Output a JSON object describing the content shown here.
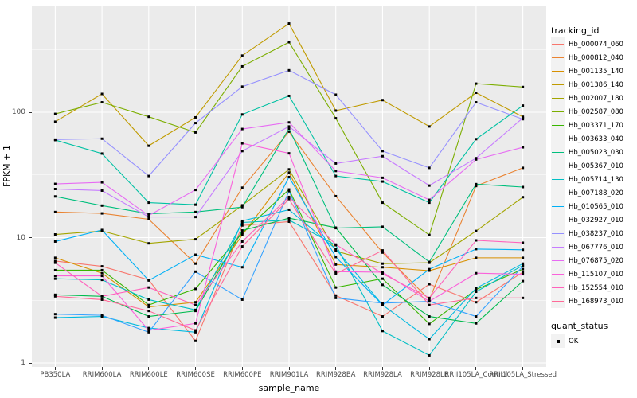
{
  "figure": {
    "y_axis": {
      "title": "FPKM + 1",
      "tick_labels": [
        "1",
        "10",
        "100"
      ],
      "tick_values": [
        1,
        10,
        100
      ],
      "minor_grid_values": [
        3.1623,
        31.623,
        316.23
      ]
    },
    "x_axis": {
      "title": "sample_name"
    },
    "legend": {
      "tracking_title": "tracking_id",
      "quant_title": "quant_status",
      "quant_items": [
        {
          "label": "OK",
          "marker": "black-square"
        }
      ]
    },
    "colors": {
      "panel_bg": "#EBEBEB",
      "grid": "#FFFFFF",
      "axis_text": "#4D4D4D",
      "axis_title": "#000000",
      "legend_key_bg": "#F2F2F2",
      "point": "#000000"
    }
  },
  "chart_data": {
    "type": "line",
    "xlabel": "sample_name",
    "ylabel": "FPKM + 1",
    "yscale": "log10",
    "ylim": [
      0.93,
      676
    ],
    "grid": "on",
    "legend_position": "right",
    "point_shape": "square",
    "quant_status_of_all_points": "OK",
    "x": [
      "PB350LA",
      "RRIM600LA",
      "RRIM600LE",
      "RRIM600SE",
      "RRIM600PE",
      "RRIM901LA",
      "RRIM928BA",
      "RRIM928LA",
      "RRIM928LE",
      "RRII105LA_Control",
      "RRII105LA_Stressed"
    ],
    "series": [
      {
        "name": "Hb_000074_060",
        "color": "#F8766D",
        "values": [
          6.5,
          5.9,
          4.6,
          1.5,
          12.5,
          13.4,
          3.45,
          2.35,
          4.25,
          3.05,
          5.3
        ]
      },
      {
        "name": "Hb_000812_040",
        "color": "#EA8331",
        "values": [
          16,
          15.6,
          14,
          6.2,
          25,
          70,
          21.4,
          7.6,
          3.2,
          25.8,
          36
        ]
      },
      {
        "name": "Hb_001135_140",
        "color": "#D89000",
        "values": [
          6.9,
          5.2,
          2.8,
          3.05,
          10.5,
          33,
          6.1,
          5.8,
          5.45,
          6.9,
          6.9
        ]
      },
      {
        "name": "Hb_001386_140",
        "color": "#C09B00",
        "values": [
          84,
          140,
          54,
          91,
          283,
          510,
          103,
          125,
          77,
          143,
          92
        ]
      },
      {
        "name": "Hb_002007_180",
        "color": "#A3A500",
        "values": [
          10.6,
          11.3,
          9.0,
          9.7,
          18.1,
          35,
          7.8,
          6.2,
          6.3,
          11.3,
          21
        ]
      },
      {
        "name": "Hb_002587_080",
        "color": "#7CAE00",
        "values": [
          97,
          120,
          92,
          69,
          232,
          362,
          89.5,
          19,
          10.5,
          169,
          159
        ]
      },
      {
        "name": "Hb_003371_170",
        "color": "#39B600",
        "values": [
          5.5,
          5.5,
          2.9,
          3.9,
          10.9,
          24.2,
          4.0,
          4.7,
          2.05,
          3.85,
          5.6
        ]
      },
      {
        "name": "Hb_003633_040",
        "color": "#00BB4E",
        "values": [
          3.5,
          3.4,
          2.35,
          2.6,
          11.4,
          14.3,
          12,
          4.2,
          2.35,
          2.07,
          4.5
        ]
      },
      {
        "name": "Hb_005023_030",
        "color": "#00BF7D",
        "values": [
          21.3,
          18,
          15.5,
          16,
          17.5,
          74,
          11.9,
          12.2,
          6.4,
          26.7,
          25.3
        ]
      },
      {
        "name": "Hb_005367_010",
        "color": "#00C1A3",
        "values": [
          60,
          46.8,
          19,
          18.3,
          96,
          135,
          31,
          28,
          19,
          61,
          113
        ]
      },
      {
        "name": "Hb_005714_130",
        "color": "#00BFC4",
        "values": [
          4.7,
          4.6,
          3.2,
          2.65,
          13.2,
          13.8,
          8.7,
          1.8,
          1.15,
          3.7,
          6.0
        ]
      },
      {
        "name": "Hb_007188_020",
        "color": "#00BAE0",
        "values": [
          2.3,
          2.35,
          1.9,
          1.76,
          13.6,
          16.7,
          8.1,
          2.9,
          1.55,
          3.95,
          6.2
        ]
      },
      {
        "name": "Hb_010565_010",
        "color": "#00B0F6",
        "values": [
          9.3,
          11.5,
          4.55,
          7.3,
          5.8,
          30.4,
          7.0,
          2.9,
          5.6,
          8.1,
          8.0
        ]
      },
      {
        "name": "Hb_032927_010",
        "color": "#35A2FF",
        "values": [
          2.45,
          2.4,
          1.76,
          5.35,
          3.2,
          23.5,
          3.3,
          3.0,
          3.1,
          2.35,
          5.9
        ]
      },
      {
        "name": "Hb_038237_010",
        "color": "#9590FF",
        "values": [
          60.5,
          61.5,
          31,
          82,
          160,
          216,
          138,
          49,
          36,
          120,
          88
        ]
      },
      {
        "name": "Hb_067776_010",
        "color": "#C77CFF",
        "values": [
          24.4,
          23.7,
          14.6,
          14.6,
          49,
          77,
          39,
          44.6,
          26,
          43,
          90
        ]
      },
      {
        "name": "Hb_076875_020",
        "color": "#E76BF3",
        "values": [
          26.8,
          27.6,
          15,
          24,
          73.5,
          83,
          34,
          30,
          20,
          42,
          52.5
        ]
      },
      {
        "name": "Hb_115107_010",
        "color": "#FA62DB",
        "values": [
          4.95,
          4.95,
          1.82,
          2.07,
          56.5,
          47,
          5.35,
          5.3,
          3.1,
          5.2,
          5.1
        ]
      },
      {
        "name": "Hb_152554_010",
        "color": "#FF62BC",
        "values": [
          6.3,
          3.4,
          4.0,
          2.9,
          9.3,
          21.1,
          8.8,
          5.15,
          3.3,
          9.5,
          9.1
        ]
      },
      {
        "name": "Hb_168973_010",
        "color": "#FF6A98",
        "values": [
          3.4,
          3.2,
          2.6,
          1.82,
          8.5,
          20.3,
          5.15,
          7.9,
          2.9,
          3.3,
          3.3
        ]
      }
    ]
  }
}
